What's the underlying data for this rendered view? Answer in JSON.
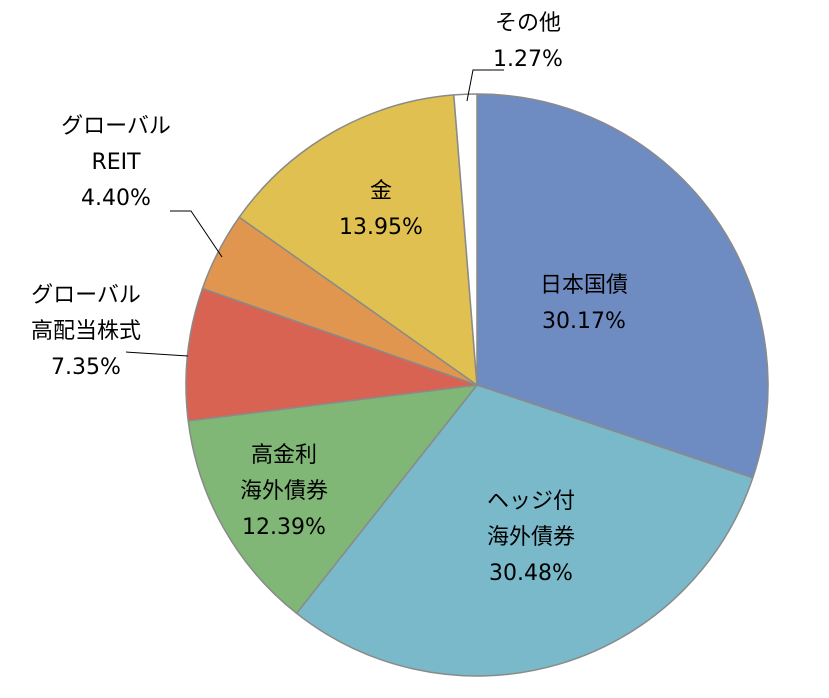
{
  "chart_data": {
    "type": "pie",
    "title": "",
    "start_angle_deg": 0,
    "direction": "clockwise",
    "slices": [
      {
        "label_lines": [
          "日本国債"
        ],
        "value": 30.17,
        "value_text": "30.17%",
        "color": "#6f8cc2"
      },
      {
        "label_lines": [
          "ヘッジ付",
          "海外債券"
        ],
        "value": 30.48,
        "value_text": "30.48%",
        "color": "#7ab9c9"
      },
      {
        "label_lines": [
          "高金利",
          "海外債券"
        ],
        "value": 12.39,
        "value_text": "12.39%",
        "color": "#80b676"
      },
      {
        "label_lines": [
          "グローバル",
          "高配当株式"
        ],
        "value": 7.35,
        "value_text": "7.35%",
        "color": "#d96352"
      },
      {
        "label_lines": [
          "グローバル",
          "REIT"
        ],
        "value": 4.4,
        "value_text": "4.40%",
        "color": "#e0964f"
      },
      {
        "label_lines": [
          "金"
        ],
        "value": 13.95,
        "value_text": "13.95%",
        "color": "#dfc050"
      },
      {
        "label_lines": [
          "その他"
        ],
        "value": 1.27,
        "value_text": "1.27%",
        "color": "#ffffff"
      }
    ]
  }
}
